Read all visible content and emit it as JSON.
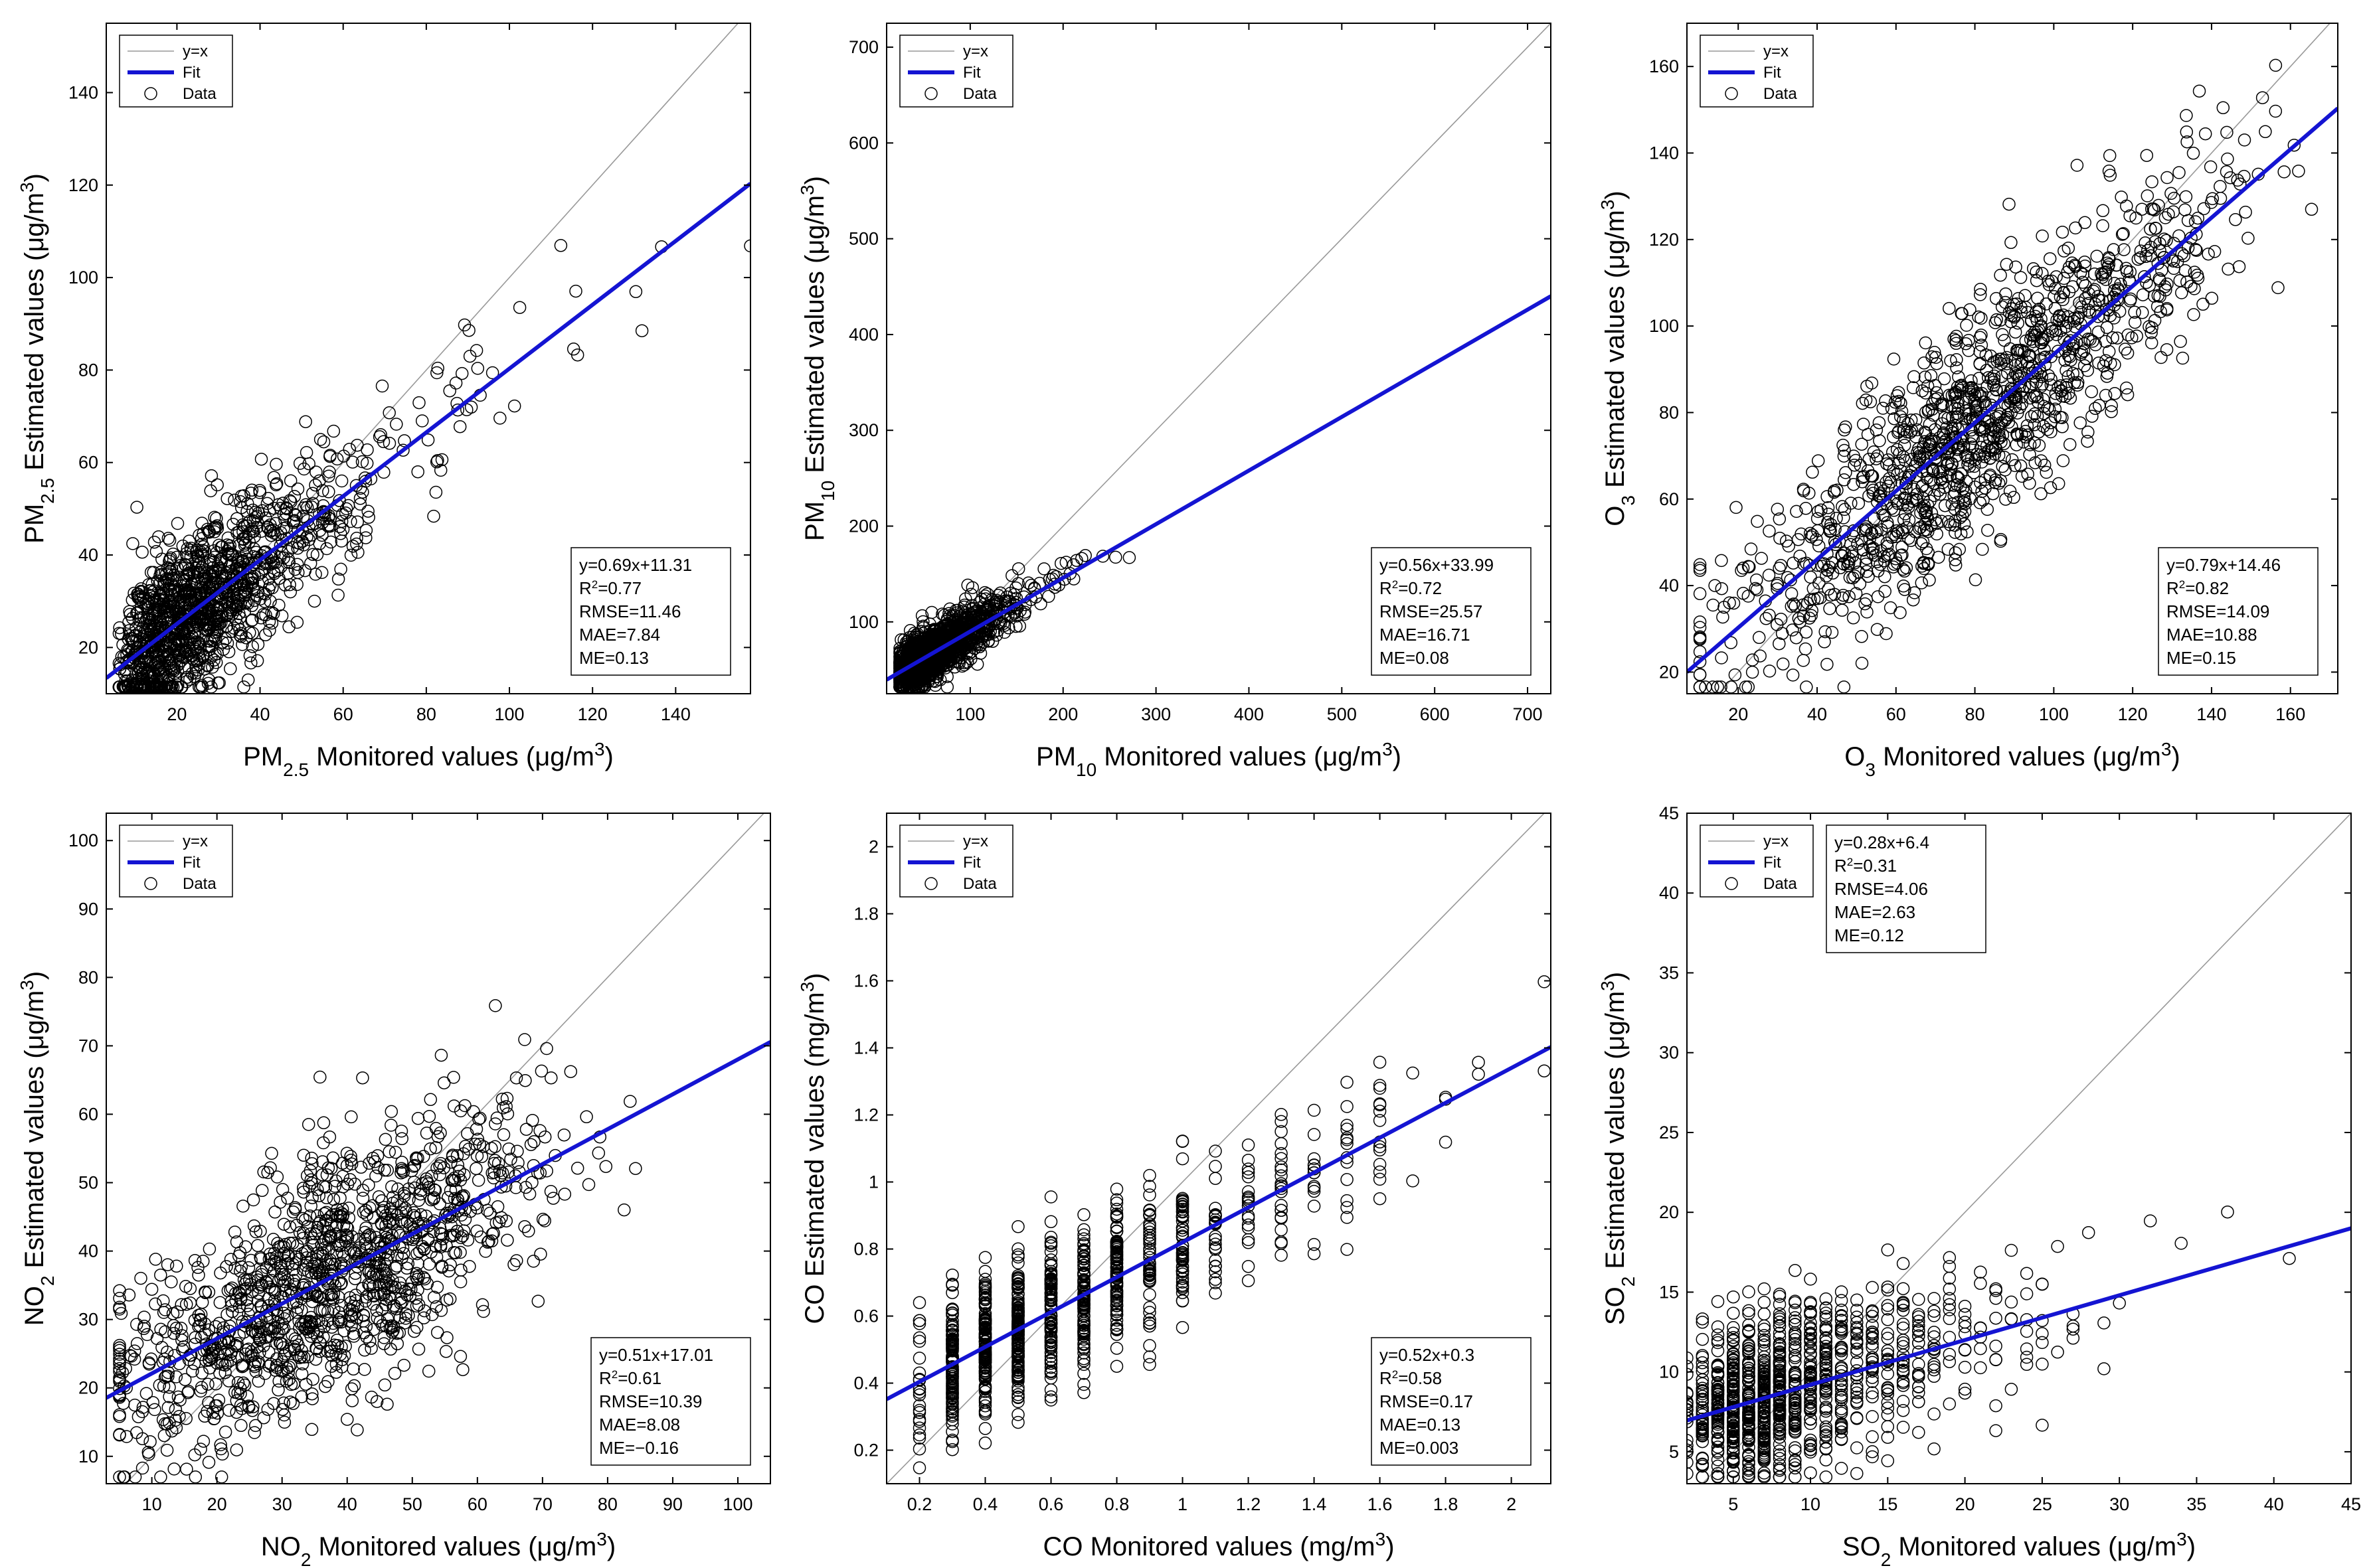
{
  "colors": {
    "fit": "#1414d2",
    "identity": "#999999",
    "marker": "#000000",
    "axis": "#000000"
  },
  "chart_data": [
    {
      "type": "scatter",
      "id": "pm25",
      "seed": 11,
      "n_points": 1300,
      "x_dist": {
        "kind": "lognormal",
        "median": 25,
        "spread": 0.55
      },
      "y_noise_sd": 8.5,
      "xlim": [
        3,
        158
      ],
      "ylim": [
        10,
        155
      ],
      "xticks": [
        20,
        40,
        60,
        80,
        100,
        120,
        140
      ],
      "yticks": [
        20,
        40,
        60,
        80,
        100,
        120,
        140
      ],
      "xlabel": {
        "base": "PM",
        "sub": "2.5",
        "rest": " Monitored values (μg/m",
        "sup": "3",
        "end": ")"
      },
      "ylabel": {
        "base": "PM",
        "sub": "2.5",
        "rest": " Estimated values (μg/m",
        "sup": "3",
        "end": ")"
      },
      "legend": {
        "position": "top-left",
        "identity": "y=x",
        "fit": "Fit",
        "data": "Data"
      },
      "fit": {
        "slope": 0.69,
        "intercept": 11.31
      },
      "stats_position": "bottom-right",
      "stats": {
        "equation": "y=0.69x+11.31",
        "r2": "=0.77",
        "rmse": "RMSE=11.46",
        "mae": "MAE=7.84",
        "me": "ME=0.13"
      }
    },
    {
      "type": "scatter",
      "id": "pm10",
      "seed": 23,
      "n_points": 1300,
      "x_dist": {
        "kind": "lognormal",
        "median": 60,
        "spread": 0.5
      },
      "y_noise_sd": 14,
      "xlim": [
        10,
        725
      ],
      "ylim": [
        25,
        725
      ],
      "xticks": [
        100,
        200,
        300,
        400,
        500,
        600,
        700
      ],
      "yticks": [
        100,
        200,
        300,
        400,
        500,
        600,
        700
      ],
      "xlabel": {
        "base": "PM",
        "sub": "10",
        "rest": " Monitored values (μg/m",
        "sup": "3",
        "end": ")"
      },
      "ylabel": {
        "base": "PM",
        "sub": "10",
        "rest": "  Estimated values (μg/m",
        "sup": "3",
        "end": ")"
      },
      "legend": {
        "position": "top-left",
        "identity": "y=x",
        "fit": "Fit",
        "data": "Data"
      },
      "fit": {
        "slope": 0.56,
        "intercept": 33.99
      },
      "stats_position": "bottom-right",
      "stats": {
        "equation": "y=0.56x+33.99",
        "r2": "=0.72",
        "rmse": "RMSE=25.57",
        "mae": "MAE=16.71",
        "me": "ME=0.08"
      }
    },
    {
      "type": "scatter",
      "id": "o3",
      "seed": 37,
      "n_points": 1300,
      "x_dist": {
        "kind": "normal",
        "mean": 80,
        "sd": 30
      },
      "y_noise_sd": 13,
      "xlim": [
        7,
        172
      ],
      "ylim": [
        15,
        170
      ],
      "xticks": [
        20,
        40,
        60,
        80,
        100,
        120,
        140,
        160
      ],
      "yticks": [
        20,
        40,
        60,
        80,
        100,
        120,
        140,
        160
      ],
      "xlabel": {
        "base": "O",
        "sub": "3",
        "rest": " Monitored values (μg/m",
        "sup": "3",
        "end": ")"
      },
      "ylabel": {
        "base": "O",
        "sub": "3",
        "rest": " Estimated values (μg/m",
        "sup": "3",
        "end": ")"
      },
      "legend": {
        "position": "top-left",
        "identity": "y=x",
        "fit": "Fit",
        "data": "Data"
      },
      "fit": {
        "slope": 0.79,
        "intercept": 14.46
      },
      "stats_position": "bottom-right",
      "stats": {
        "equation": "y=0.79x+14.46",
        "r2": "=0.82",
        "rmse": "RMSE=14.09",
        "mae": "MAE=10.88",
        "me": "ME=0.15"
      }
    },
    {
      "type": "scatter",
      "id": "no2",
      "seed": 41,
      "n_points": 1300,
      "x_dist": {
        "kind": "normal",
        "mean": 37,
        "sd": 16
      },
      "y_noise_sd": 8.5,
      "xlim": [
        3,
        105
      ],
      "ylim": [
        6,
        104
      ],
      "xticks": [
        10,
        20,
        30,
        40,
        50,
        60,
        70,
        80,
        90,
        100
      ],
      "yticks": [
        10,
        20,
        30,
        40,
        50,
        60,
        70,
        80,
        90,
        100
      ],
      "xlabel": {
        "base": "NO",
        "sub": "2",
        "rest": " Monitored values (μg/m",
        "sup": "3",
        "end": ")"
      },
      "ylabel": {
        "base": "NO",
        "sub": "2",
        "rest": " Estimated values (μg/m",
        "sup": "3",
        "end": ")"
      },
      "legend": {
        "position": "top-left",
        "identity": "y=x",
        "fit": "Fit",
        "data": "Data"
      },
      "fit": {
        "slope": 0.51,
        "intercept": 17.01
      },
      "stats_position": "bottom-right",
      "stats": {
        "equation": "y=0.51x+17.01",
        "r2": "=0.61",
        "rmse": "RMSE=10.39",
        "mae": "MAE=8.08",
        "me": "ME=−0.16"
      }
    },
    {
      "type": "scatter",
      "id": "co",
      "seed": 53,
      "n_points": 900,
      "x_dist": {
        "kind": "discrete",
        "values": [
          0.2,
          0.3,
          0.4,
          0.5,
          0.6,
          0.7,
          0.8,
          0.9,
          1.0,
          1.1,
          1.2,
          1.3,
          1.4,
          1.5,
          1.6,
          1.7,
          1.8,
          1.9,
          2.1
        ],
        "weights": [
          4,
          16,
          20,
          20,
          18,
          15,
          12,
          9,
          8,
          5,
          4,
          4,
          2,
          2,
          1.5,
          1,
          0.5,
          0.3,
          0.2
        ]
      },
      "y_noise_sd": 0.11,
      "xlim": [
        0.1,
        2.12
      ],
      "ylim": [
        0.1,
        2.1
      ],
      "xticks": [
        0.2,
        0.4,
        0.6,
        0.8,
        1,
        1.2,
        1.4,
        1.6,
        1.8,
        2
      ],
      "yticks": [
        0.2,
        0.4,
        0.6,
        0.8,
        1,
        1.2,
        1.4,
        1.6,
        1.8,
        2
      ],
      "xlabel": {
        "base": "CO",
        "sub": "",
        "rest": " Monitored values (mg/m",
        "sup": "3",
        "end": ")"
      },
      "ylabel": {
        "base": "CO",
        "sub": "",
        "rest": " Estimated values (mg/m",
        "sup": "3",
        "end": ")"
      },
      "legend": {
        "position": "top-left",
        "identity": "y=x",
        "fit": "Fit",
        "data": "Data"
      },
      "fit": {
        "slope": 0.52,
        "intercept": 0.3
      },
      "stats_position": "bottom-right",
      "stats": {
        "equation": "y=0.52x+0.3",
        "r2": "=0.58",
        "rmse": "RMSE=0.17",
        "mae": "MAE=0.13",
        "me": "ME=0.003"
      }
    },
    {
      "type": "scatter",
      "id": "so2",
      "seed": 67,
      "n_points": 1000,
      "x_dist": {
        "kind": "discrete-lognormal",
        "median": 8,
        "spread": 0.55,
        "step": 1
      },
      "y_noise_sd": 2.6,
      "xlim": [
        2,
        45
      ],
      "ylim": [
        3,
        45
      ],
      "xticks": [
        5,
        10,
        15,
        20,
        25,
        30,
        35,
        40,
        45
      ],
      "yticks": [
        5,
        10,
        15,
        20,
        25,
        30,
        35,
        40,
        45
      ],
      "xlabel": {
        "base": "SO",
        "sub": "2",
        "rest": " Monitored values (μg/m",
        "sup": "3",
        "end": ")"
      },
      "ylabel": {
        "base": "SO",
        "sub": "2",
        "rest": " Estimated values (μg/m",
        "sup": "3",
        "end": ")"
      },
      "legend": {
        "position": "top-left",
        "identity": "y=x",
        "fit": "Fit",
        "data": "Data"
      },
      "fit": {
        "slope": 0.28,
        "intercept": 6.4
      },
      "stats_position": "top-left-after-legend",
      "stats": {
        "equation": "y=0.28x+6.4",
        "r2": "=0.31",
        "rmse": "RMSE=4.06",
        "mae": "MAE=2.63",
        "me": "ME=0.12"
      }
    }
  ]
}
